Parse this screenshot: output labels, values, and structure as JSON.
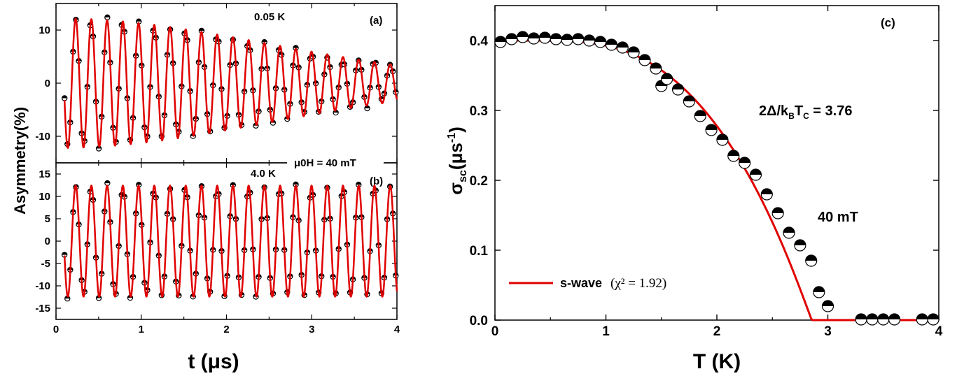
{
  "chart_data": [
    {
      "id": "a",
      "type": "scatter",
      "panel_label": "(a)",
      "annotation": "0.05 K",
      "xlim": [
        0,
        4
      ],
      "ylim": [
        -15,
        15
      ],
      "yticks": [
        "10",
        "0",
        "-10"
      ],
      "fit": {
        "amplitude": 12.2,
        "frequency_MHz": 5.42,
        "phase": 4.71,
        "sigma": 0.4
      }
    },
    {
      "id": "b",
      "type": "scatter",
      "panel_label": "(b)",
      "annotation": "4.0 K",
      "xlim": [
        0,
        4
      ],
      "ylim": [
        -17.5,
        17.5
      ],
      "xticks": [
        "0",
        "1",
        "2",
        "3",
        "4"
      ],
      "yticks": [
        "15",
        "10",
        "5",
        "0",
        "-5",
        "-10",
        "-15"
      ],
      "fit": {
        "amplitude": 12.4,
        "frequency_MHz": 5.42,
        "phase": 4.71,
        "sigma": 0.0
      }
    },
    {
      "id": "c",
      "type": "scatter",
      "panel_label": "(c)",
      "xlabel": "T (K)",
      "xlim": [
        0,
        4
      ],
      "ylim": [
        0,
        0.45
      ],
      "xticks": [
        "0",
        "1",
        "2",
        "3",
        "4"
      ],
      "yticks": [
        "0.0",
        "0.1",
        "0.2",
        "0.3",
        "0.4"
      ],
      "annotations": [
        "40 mT"
      ],
      "legend": {
        "position": "bottom-left",
        "label": "s-wave",
        "formula": "(χ² = 1.92)"
      },
      "points": [
        {
          "T": 0.05,
          "s": 0.398
        },
        {
          "T": 0.15,
          "s": 0.402
        },
        {
          "T": 0.25,
          "s": 0.405
        },
        {
          "T": 0.35,
          "s": 0.403
        },
        {
          "T": 0.45,
          "s": 0.404
        },
        {
          "T": 0.55,
          "s": 0.402
        },
        {
          "T": 0.65,
          "s": 0.401
        },
        {
          "T": 0.75,
          "s": 0.402
        },
        {
          "T": 0.85,
          "s": 0.4
        },
        {
          "T": 0.95,
          "s": 0.398
        },
        {
          "T": 1.05,
          "s": 0.394
        },
        {
          "T": 1.15,
          "s": 0.39
        },
        {
          "T": 1.25,
          "s": 0.383
        },
        {
          "T": 1.35,
          "s": 0.372
        },
        {
          "T": 1.45,
          "s": 0.36
        },
        {
          "T": 1.5,
          "s": 0.335
        },
        {
          "T": 1.55,
          "s": 0.345
        },
        {
          "T": 1.65,
          "s": 0.33
        },
        {
          "T": 1.75,
          "s": 0.313
        },
        {
          "T": 1.85,
          "s": 0.292
        },
        {
          "T": 1.95,
          "s": 0.272
        },
        {
          "T": 2.05,
          "s": 0.258
        },
        {
          "T": 2.15,
          "s": 0.235
        },
        {
          "T": 2.25,
          "s": 0.225
        },
        {
          "T": 2.35,
          "s": 0.208
        },
        {
          "T": 2.45,
          "s": 0.18
        },
        {
          "T": 2.55,
          "s": 0.153
        },
        {
          "T": 2.65,
          "s": 0.125
        },
        {
          "T": 2.75,
          "s": 0.107
        },
        {
          "T": 2.85,
          "s": 0.085
        },
        {
          "T": 2.92,
          "s": 0.04
        },
        {
          "T": 3.0,
          "s": 0.02
        },
        {
          "T": 3.3,
          "s": 0.001
        },
        {
          "T": 3.4,
          "s": 0.001
        },
        {
          "T": 3.5,
          "s": 0.001
        },
        {
          "T": 3.6,
          "s": 0.001
        },
        {
          "T": 3.85,
          "s": 0.001
        },
        {
          "T": 3.95,
          "s": 0.001
        }
      ],
      "fit": {
        "sigma0": 0.4,
        "Tc": 3.05,
        "gap_ratio": 3.76
      }
    }
  ],
  "labels": {
    "field": "μ0H = 40 mT",
    "time_axis": "t (μs)",
    "y_left": "Asymmetry(%)",
    "gap_text": "2Δ/kBTC = 3.76"
  }
}
